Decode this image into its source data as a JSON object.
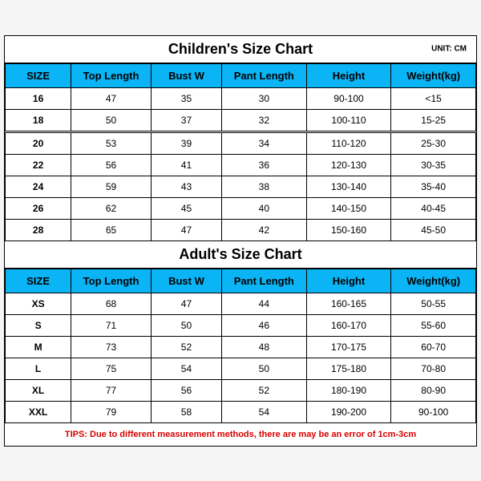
{
  "children": {
    "title": "Children's Size Chart",
    "unit": "UNIT: CM",
    "headers": [
      "SIZE",
      "Top Length",
      "Bust W",
      "Pant Length",
      "Height",
      "Weight(kg)"
    ],
    "rows": [
      [
        "16",
        "47",
        "35",
        "30",
        "90-100",
        "<15"
      ],
      [
        "18",
        "50",
        "37",
        "32",
        "100-110",
        "15-25"
      ],
      [
        "20",
        "53",
        "39",
        "34",
        "110-120",
        "25-30"
      ],
      [
        "22",
        "56",
        "41",
        "36",
        "120-130",
        "30-35"
      ],
      [
        "24",
        "59",
        "43",
        "38",
        "130-140",
        "35-40"
      ],
      [
        "26",
        "62",
        "45",
        "40",
        "140-150",
        "40-45"
      ],
      [
        "28",
        "65",
        "47",
        "42",
        "150-160",
        "45-50"
      ]
    ]
  },
  "adult": {
    "title": "Adult's Size Chart",
    "headers": [
      "SIZE",
      "Top Length",
      "Bust W",
      "Pant Length",
      "Height",
      "Weight(kg)"
    ],
    "rows": [
      [
        "XS",
        "68",
        "47",
        "44",
        "160-165",
        "50-55"
      ],
      [
        "S",
        "71",
        "50",
        "46",
        "160-170",
        "55-60"
      ],
      [
        "M",
        "73",
        "52",
        "48",
        "170-175",
        "60-70"
      ],
      [
        "L",
        "75",
        "54",
        "50",
        "175-180",
        "70-80"
      ],
      [
        "XL",
        "77",
        "56",
        "52",
        "180-190",
        "80-90"
      ],
      [
        "XXL",
        "79",
        "58",
        "54",
        "190-200",
        "90-100"
      ]
    ]
  },
  "tips": "TIPS: Due to different measurement methods, there are may be an error of 1cm-3cm",
  "style": {
    "header_bg": "#0bb4f5",
    "tips_color": "#d80000",
    "border_color": "#000000",
    "bg_color": "#ffffff",
    "title_fontsize": 18,
    "header_fontsize": 13,
    "cell_fontsize": 12,
    "tips_fontsize": 11,
    "unit_fontsize": 10
  }
}
